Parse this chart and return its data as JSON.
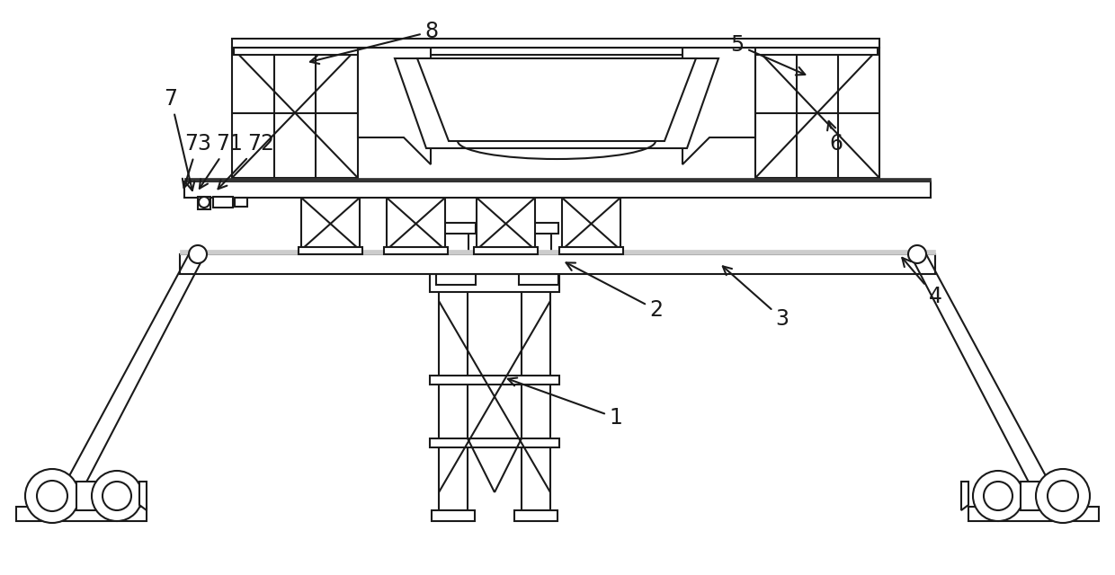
{
  "bg_color": "#ffffff",
  "lc": "#1a1a1a",
  "lw": 1.5,
  "lw2": 2.0,
  "lw3": 3.0
}
